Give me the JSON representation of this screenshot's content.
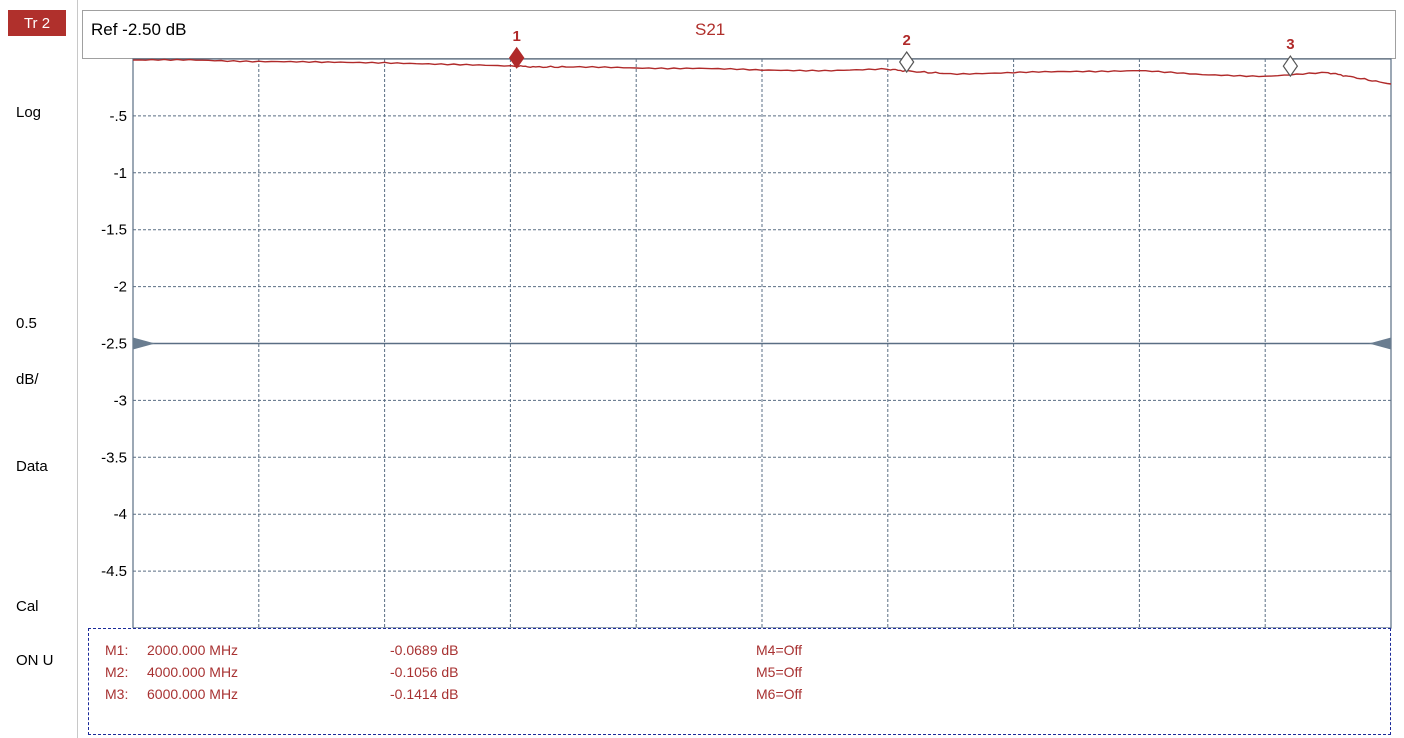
{
  "side_panel": {
    "trace_badge": "Tr 2",
    "format": "Log",
    "scale_value": "0.5",
    "scale_unit": "dB/",
    "display": "Data",
    "cal_label": "Cal",
    "cal_state": "ON U"
  },
  "header": {
    "reference": "Ref -2.50 dB",
    "trace": "S21"
  },
  "colors": {
    "trace": "#b02a2a",
    "grid": "#5a6e84",
    "reference_marker": "#6a7d90",
    "badge": "#b0302c",
    "marker_table_text": "#a83232",
    "marker_table_border": "#1a2a9a"
  },
  "chart_data": {
    "type": "line",
    "title": "S21",
    "xlabel": "",
    "ylabel": "",
    "ylim": [
      -5.0,
      0.0
    ],
    "reference_level": -2.5,
    "yticks": [
      {
        "value": -0.5,
        "label": "-.5"
      },
      {
        "value": -1.0,
        "label": "-1"
      },
      {
        "value": -1.5,
        "label": "-1.5"
      },
      {
        "value": -2.0,
        "label": "-2"
      },
      {
        "value": -2.5,
        "label": "-2.5"
      },
      {
        "value": -3.0,
        "label": "-3"
      },
      {
        "value": -3.5,
        "label": "-3.5"
      },
      {
        "value": -4.0,
        "label": "-4"
      },
      {
        "value": -4.5,
        "label": "-4.5"
      }
    ],
    "x_divisions": 10,
    "xlim": [
      0,
      10
    ],
    "grid": true,
    "series": [
      {
        "x": [
          0,
          0.5,
          1,
          1.5,
          2,
          2.5,
          3,
          3.2,
          3.5,
          4,
          4.5,
          5,
          5.5,
          6,
          6.2,
          6.5,
          7,
          7.5,
          8,
          8.5,
          9,
          9.5,
          9.7,
          10
        ],
        "values": [
          -0.01,
          -0.01,
          -0.02,
          -0.03,
          -0.03,
          -0.05,
          -0.06,
          -0.07,
          -0.07,
          -0.08,
          -0.08,
          -0.1,
          -0.1,
          -0.09,
          -0.11,
          -0.13,
          -0.12,
          -0.11,
          -0.1,
          -0.14,
          -0.15,
          -0.12,
          -0.16,
          -0.22
        ]
      }
    ],
    "markers": [
      {
        "number": "1",
        "x": 3.05,
        "value": -0.0689,
        "active": true
      },
      {
        "number": "2",
        "x": 6.15,
        "value": -0.1056,
        "active": false
      },
      {
        "number": "3",
        "x": 9.2,
        "value": -0.1414,
        "active": false
      }
    ]
  },
  "marker_table": {
    "rows": [
      {
        "name": "M1:",
        "freq": "2000.000 MHz",
        "value": "-0.0689 dB",
        "other": "M4=Off"
      },
      {
        "name": "M2:",
        "freq": "4000.000 MHz",
        "value": "-0.1056 dB",
        "other": "M5=Off"
      },
      {
        "name": "M3:",
        "freq": "6000.000 MHz",
        "value": "-0.1414 dB",
        "other": "M6=Off"
      }
    ]
  }
}
